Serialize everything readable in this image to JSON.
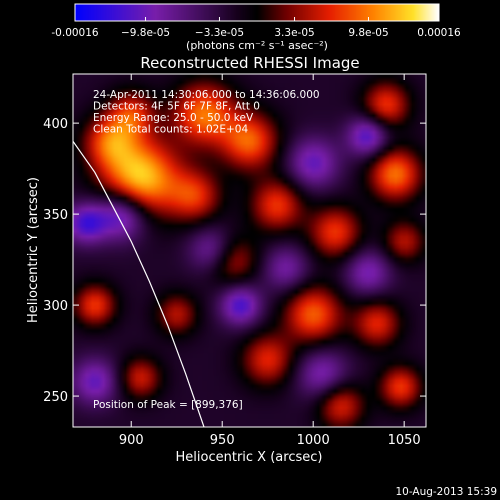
{
  "chart_data": {
    "type": "heatmap",
    "title": "Reconstructed RHESSI Image",
    "xlabel": "Heliocentric X (arcsec)",
    "ylabel": "Heliocentric Y (arcsec)",
    "xlim": [
      868,
      1062
    ],
    "ylim": [
      233,
      427
    ],
    "x_ticks": [
      900,
      950,
      1000,
      1050
    ],
    "y_ticks": [
      250,
      300,
      350,
      400
    ],
    "colorbar": {
      "min": -0.00016,
      "max": 0.00016,
      "tick_values": [
        -0.00016,
        -9.8e-05,
        -3.3e-05,
        3.3e-05,
        9.8e-05,
        0.00016
      ],
      "tick_labels": [
        "-0.00016",
        "−9.8e-05",
        "−3.3e-05",
        "3.3e-05",
        "9.8e-05",
        "0.00016"
      ],
      "unit_label": "(photons cm⁻² s⁻¹ asec⁻²)"
    },
    "annotations": [
      "24-Apr-2011 14:30:06.000 to 14:36:06.000",
      "Detectors: 4F 5F 6F 7F 8F, Att 0",
      "Energy Range: 25.0 - 50.0 keV",
      "Clean     Total counts: 1.02E+04"
    ],
    "peak_label": "Position of Peak = [899,376]",
    "peak": [
      899,
      376
    ],
    "limb_curve": [
      [
        868,
        390
      ],
      [
        880,
        373
      ],
      [
        890,
        354
      ],
      [
        900,
        335
      ],
      [
        910,
        313
      ],
      [
        920,
        289
      ],
      [
        930,
        262
      ],
      [
        940,
        233
      ]
    ],
    "sources": [
      {
        "x": 905,
        "y": 370,
        "sigma": 15,
        "amp": 1.0
      },
      {
        "x": 888,
        "y": 390,
        "sigma": 10,
        "amp": 0.6
      },
      {
        "x": 900,
        "y": 405,
        "sigma": 9,
        "amp": 0.55
      },
      {
        "x": 940,
        "y": 405,
        "sigma": 12,
        "amp": 0.75
      },
      {
        "x": 965,
        "y": 390,
        "sigma": 11,
        "amp": 0.7
      },
      {
        "x": 935,
        "y": 360,
        "sigma": 10,
        "amp": 0.55
      },
      {
        "x": 980,
        "y": 355,
        "sigma": 10,
        "amp": 0.6
      },
      {
        "x": 1012,
        "y": 340,
        "sigma": 10,
        "amp": 0.6
      },
      {
        "x": 1045,
        "y": 372,
        "sigma": 10,
        "amp": 0.75
      },
      {
        "x": 1040,
        "y": 410,
        "sigma": 9,
        "amp": 0.6
      },
      {
        "x": 1050,
        "y": 335,
        "sigma": 8,
        "amp": 0.45
      },
      {
        "x": 955,
        "y": 325,
        "sigma": 10,
        "amp": 0.5
      },
      {
        "x": 1000,
        "y": 295,
        "sigma": 11,
        "amp": 0.7
      },
      {
        "x": 1035,
        "y": 290,
        "sigma": 9,
        "amp": 0.55
      },
      {
        "x": 1048,
        "y": 255,
        "sigma": 8,
        "amp": 0.6
      },
      {
        "x": 880,
        "y": 300,
        "sigma": 8,
        "amp": 0.6
      },
      {
        "x": 975,
        "y": 270,
        "sigma": 10,
        "amp": 0.55
      },
      {
        "x": 925,
        "y": 295,
        "sigma": 8,
        "amp": 0.45
      },
      {
        "x": 905,
        "y": 260,
        "sigma": 8,
        "amp": 0.5
      },
      {
        "x": 1015,
        "y": 245,
        "sigma": 9,
        "amp": 0.55
      },
      {
        "x": 895,
        "y": 350,
        "sigma": 10,
        "amp": -0.7
      },
      {
        "x": 875,
        "y": 345,
        "sigma": 8,
        "amp": -0.6
      },
      {
        "x": 945,
        "y": 330,
        "sigma": 9,
        "amp": -0.5
      },
      {
        "x": 1030,
        "y": 393,
        "sigma": 8,
        "amp": -0.6
      },
      {
        "x": 1000,
        "y": 378,
        "sigma": 10,
        "amp": -0.5
      },
      {
        "x": 960,
        "y": 300,
        "sigma": 8,
        "amp": -0.6
      },
      {
        "x": 880,
        "y": 258,
        "sigma": 9,
        "amp": -0.5
      },
      {
        "x": 1030,
        "y": 318,
        "sigma": 9,
        "amp": -0.45
      },
      {
        "x": 985,
        "y": 320,
        "sigma": 9,
        "amp": -0.4
      },
      {
        "x": 1005,
        "y": 262,
        "sigma": 10,
        "amp": -0.45
      }
    ]
  },
  "footer": {
    "timestamp": "10-Aug-2013 15:39"
  }
}
